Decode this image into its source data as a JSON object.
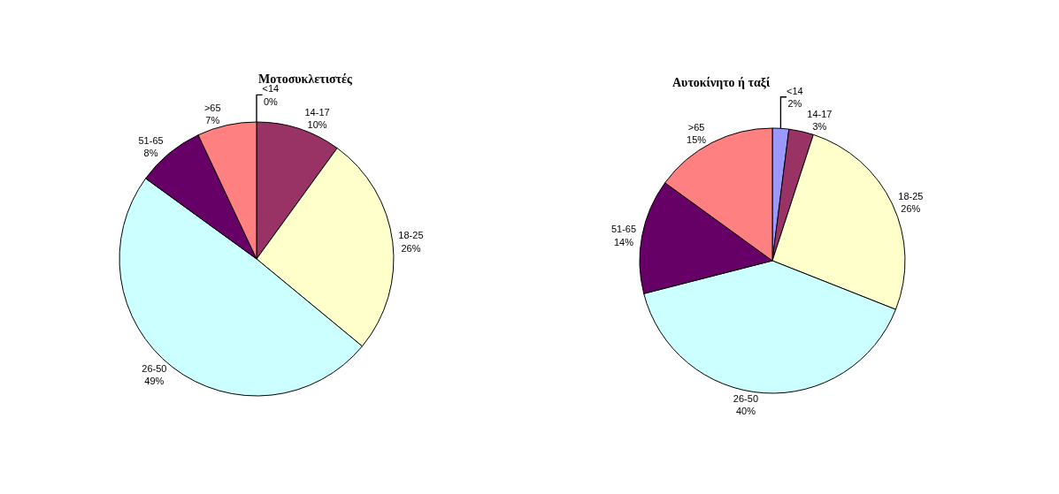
{
  "chart_data": [
    {
      "type": "pie",
      "title": "Μοτοσυκλετιστές",
      "categories": [
        "<14",
        "14-17",
        "18-25",
        "26-50",
        "51-65",
        ">65"
      ],
      "values": [
        0,
        10,
        26,
        49,
        8,
        7
      ],
      "value_labels": [
        "0%",
        "10%",
        "26%",
        "49%",
        "8%",
        "7%"
      ],
      "colors": [
        "#9999ff",
        "#993366",
        "#ffffcc",
        "#ccffff",
        "#660066",
        "#ff8080"
      ]
    },
    {
      "type": "pie",
      "title": "Αυτοκίνητο ή ταξί",
      "categories": [
        "<14",
        "14-17",
        "18-25",
        "26-50",
        "51-65",
        ">65"
      ],
      "values": [
        2,
        3,
        26,
        40,
        14,
        15
      ],
      "value_labels": [
        "2%",
        "3%",
        "26%",
        "40%",
        "14%",
        "15%"
      ],
      "colors": [
        "#9999ff",
        "#993366",
        "#ffffcc",
        "#ccffff",
        "#660066",
        "#ff8080"
      ]
    }
  ]
}
